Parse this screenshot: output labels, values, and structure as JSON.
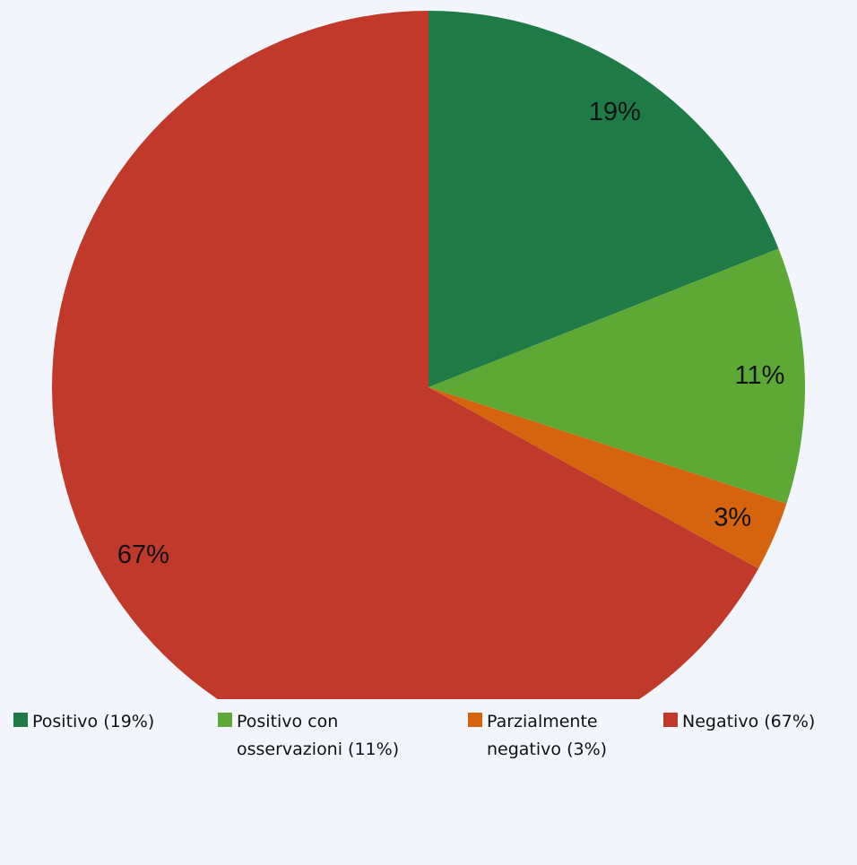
{
  "chart_data": {
    "type": "pie",
    "categories": [
      "Positivo (19%)",
      "Positivo con osservazioni (11%)",
      "Parzialmente negativo (3%)",
      "Negativo (67%)"
    ],
    "values": [
      19,
      11,
      3,
      67
    ],
    "value_labels": [
      "19%",
      "11%",
      "3%",
      "67%"
    ],
    "colors": [
      "#1e7b45",
      "#5ea935",
      "#d6640f",
      "#c0392b"
    ],
    "legend": "bottom"
  }
}
